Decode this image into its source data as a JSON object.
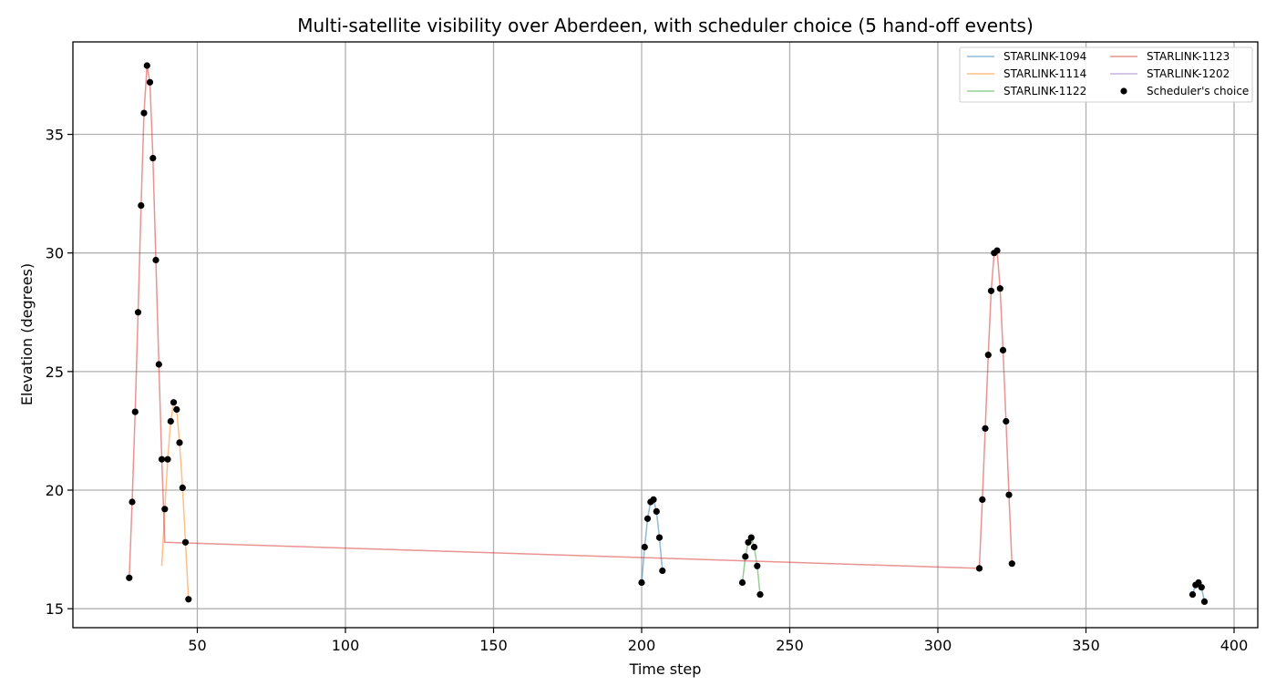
{
  "chart_data": {
    "type": "line",
    "title": "Multi-satellite visibility over Aberdeen, with scheduler choice (5 hand-off events)",
    "xlabel": "Time step",
    "ylabel": "Elevation (degrees)",
    "xlim": [
      8,
      408
    ],
    "ylim": [
      14.2,
      38.9
    ],
    "xticks": [
      50,
      100,
      150,
      200,
      250,
      300,
      350,
      400
    ],
    "yticks": [
      15,
      20,
      25,
      30,
      35
    ],
    "grid": true,
    "legend_position": "top-right",
    "series": [
      {
        "name": "STARLINK-1094",
        "color": "#1f77b4",
        "segments": [
          [
            [
              200,
              16.1
            ],
            [
              201,
              17.6
            ],
            [
              202,
              18.8
            ],
            [
              203,
              19.5
            ],
            [
              204,
              19.6
            ],
            [
              205,
              19.1
            ],
            [
              206,
              18.0
            ],
            [
              207,
              16.6
            ]
          ],
          [
            [
              386,
              15.6
            ],
            [
              387,
              16.0
            ],
            [
              388,
              16.1
            ],
            [
              389,
              15.9
            ],
            [
              390,
              15.3
            ]
          ]
        ]
      },
      {
        "name": "STARLINK-1114",
        "color": "#ff7f0e",
        "segments": [
          [
            [
              38,
              16.8
            ],
            [
              39,
              19.2
            ],
            [
              40,
              21.3
            ],
            [
              41,
              22.9
            ],
            [
              42,
              23.7
            ],
            [
              43,
              23.4
            ],
            [
              44,
              22.0
            ],
            [
              45,
              20.1
            ],
            [
              46,
              17.8
            ],
            [
              47,
              15.4
            ]
          ]
        ]
      },
      {
        "name": "STARLINK-1122",
        "color": "#2ca02c",
        "segments": [
          [
            [
              234,
              16.1
            ],
            [
              235,
              17.2
            ],
            [
              236,
              17.8
            ],
            [
              237,
              18.0
            ],
            [
              238,
              17.6
            ],
            [
              239,
              16.8
            ],
            [
              240,
              15.6
            ]
          ]
        ]
      },
      {
        "name": "STARLINK-1123",
        "color": "#d62728",
        "segments": [
          [
            [
              27,
              16.3
            ],
            [
              28,
              19.5
            ],
            [
              29,
              23.3
            ],
            [
              30,
              27.5
            ],
            [
              31,
              32.0
            ],
            [
              32,
              35.9
            ],
            [
              33,
              37.9
            ],
            [
              34,
              37.2
            ],
            [
              35,
              34.0
            ],
            [
              36,
              29.7
            ],
            [
              37,
              25.3
            ],
            [
              38,
              21.3
            ],
            [
              39,
              17.8
            ],
            [
              314,
              16.7
            ],
            [
              315,
              19.6
            ],
            [
              316,
              22.6
            ],
            [
              317,
              25.7
            ],
            [
              318,
              28.4
            ],
            [
              319,
              30.0
            ],
            [
              320,
              30.1
            ],
            [
              321,
              28.5
            ],
            [
              322,
              25.9
            ],
            [
              323,
              22.9
            ],
            [
              324,
              19.8
            ],
            [
              325,
              16.9
            ]
          ]
        ]
      },
      {
        "name": "STARLINK-1202",
        "color": "#9467bd",
        "segments": []
      }
    ],
    "scheduler_choice": {
      "name": "Scheduler's choice",
      "color": "#000000",
      "points": [
        [
          27,
          16.3
        ],
        [
          28,
          19.5
        ],
        [
          29,
          23.3
        ],
        [
          30,
          27.5
        ],
        [
          31,
          32.0
        ],
        [
          32,
          35.9
        ],
        [
          33,
          37.9
        ],
        [
          34,
          37.2
        ],
        [
          35,
          34.0
        ],
        [
          36,
          29.7
        ],
        [
          37,
          25.3
        ],
        [
          38,
          21.3
        ],
        [
          39,
          19.2
        ],
        [
          40,
          21.3
        ],
        [
          41,
          22.9
        ],
        [
          42,
          23.7
        ],
        [
          43,
          23.4
        ],
        [
          44,
          22.0
        ],
        [
          45,
          20.1
        ],
        [
          46,
          17.8
        ],
        [
          47,
          15.4
        ],
        [
          200,
          16.1
        ],
        [
          201,
          17.6
        ],
        [
          202,
          18.8
        ],
        [
          203,
          19.5
        ],
        [
          204,
          19.6
        ],
        [
          205,
          19.1
        ],
        [
          206,
          18.0
        ],
        [
          207,
          16.6
        ],
        [
          234,
          16.1
        ],
        [
          235,
          17.2
        ],
        [
          236,
          17.8
        ],
        [
          237,
          18.0
        ],
        [
          238,
          17.6
        ],
        [
          239,
          16.8
        ],
        [
          240,
          15.6
        ],
        [
          314,
          16.7
        ],
        [
          315,
          19.6
        ],
        [
          316,
          22.6
        ],
        [
          317,
          25.7
        ],
        [
          318,
          28.4
        ],
        [
          319,
          30.0
        ],
        [
          320,
          30.1
        ],
        [
          321,
          28.5
        ],
        [
          322,
          25.9
        ],
        [
          323,
          22.9
        ],
        [
          324,
          19.8
        ],
        [
          325,
          16.9
        ],
        [
          386,
          15.6
        ],
        [
          387,
          16.0
        ],
        [
          388,
          16.1
        ],
        [
          389,
          15.9
        ],
        [
          390,
          15.3
        ]
      ]
    }
  }
}
